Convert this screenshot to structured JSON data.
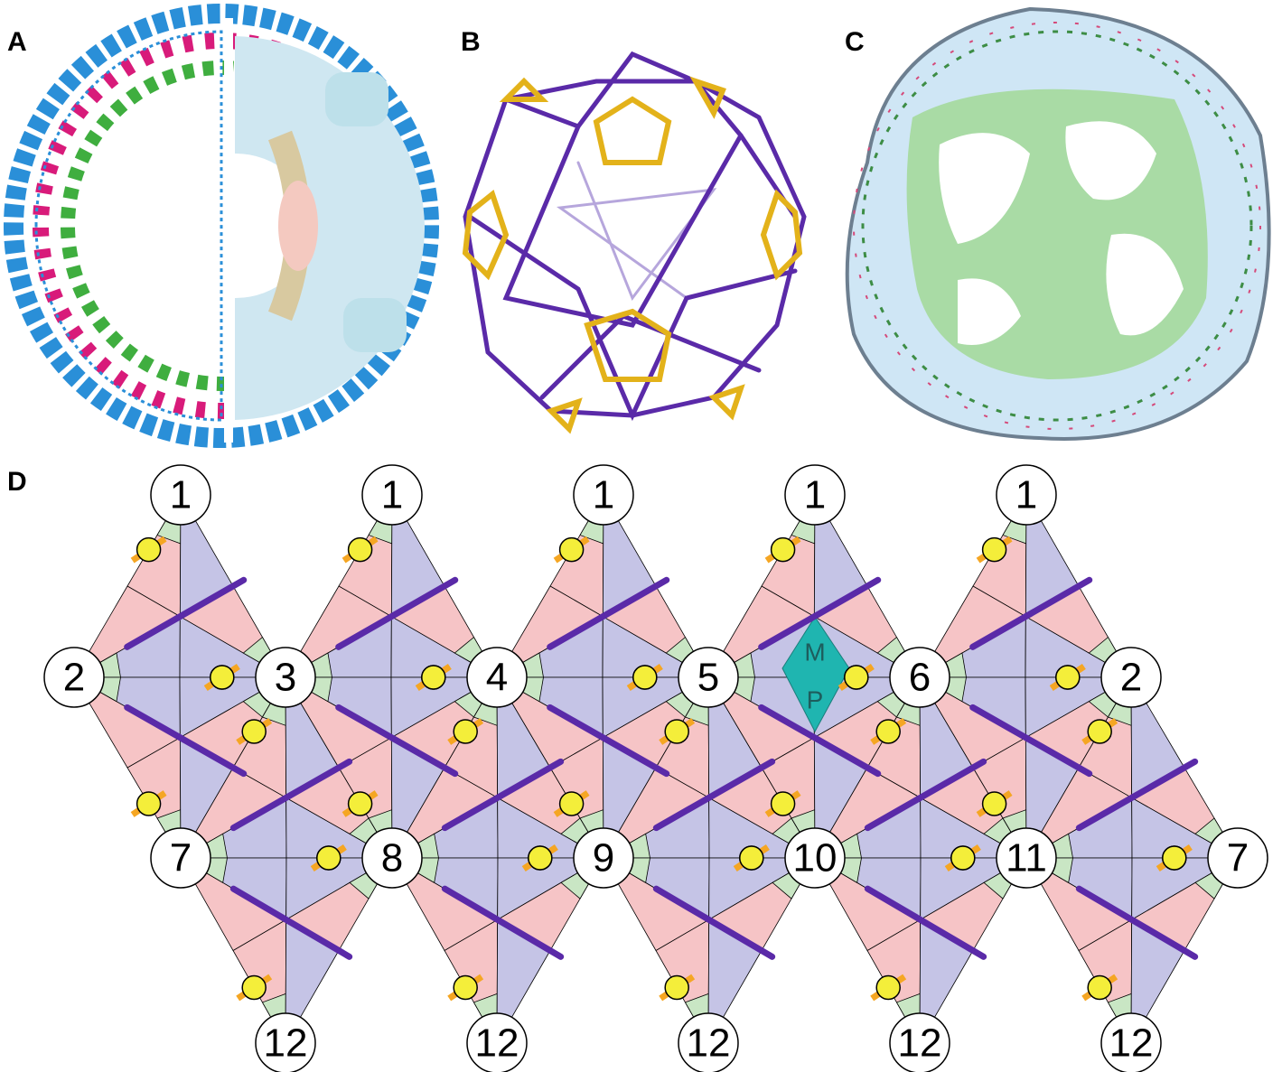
{
  "panel_labels": [
    "A",
    "B",
    "C",
    "D"
  ],
  "net": {
    "top_row": [
      "1",
      "1",
      "1",
      "1",
      "1"
    ],
    "upper_row": [
      "2",
      "3",
      "4",
      "5",
      "6",
      "2"
    ],
    "lower_row": [
      "7",
      "8",
      "9",
      "10",
      "11",
      "7"
    ],
    "bottom_row": [
      "12",
      "12",
      "12",
      "12",
      "12"
    ],
    "rhombus": [
      "M",
      "P"
    ]
  }
}
